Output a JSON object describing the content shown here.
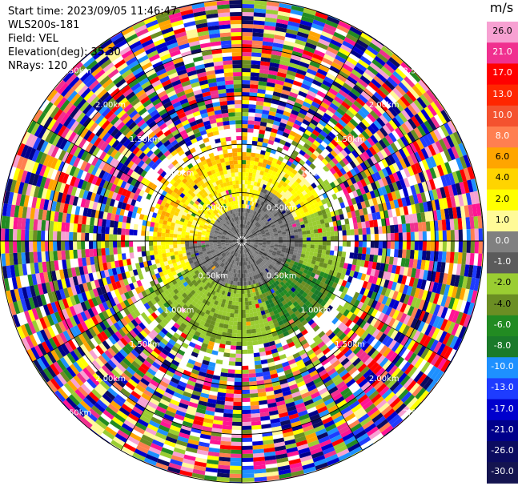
{
  "header": {
    "start_time": "Start time: 2023/09/05 11:46:47",
    "device": "WLS200s-181",
    "field": "Field: VEL",
    "elevation": "Elevation(deg): 35.30",
    "nrays": "NRays: 120"
  },
  "chart_data": {
    "type": "heatmap",
    "projection": "polar-ppi",
    "field": "VEL",
    "n_rays": 120,
    "rings": [
      {
        "range_km": 0.5,
        "label": "0.50km"
      },
      {
        "range_km": 1.0,
        "label": "1.00km"
      },
      {
        "range_km": 1.5,
        "label": "1.50km"
      },
      {
        "range_km": 2.0,
        "label": "2.00km"
      },
      {
        "range_km": 2.5,
        "label": "2.50km"
      }
    ],
    "max_range_km": 2.5,
    "colorbar": {
      "unit": "m/s",
      "ticks": [
        "26.0",
        "21.0",
        "17.0",
        "13.0",
        "10.0",
        "8.0",
        "6.0",
        "4.0",
        "2.0",
        "1.0",
        "0.0",
        "-1.0",
        "-2.0",
        "-4.0",
        "-6.0",
        "-8.0",
        "-10.0",
        "-13.0",
        "-17.0",
        "-21.0",
        "-26.0",
        "-30.0"
      ],
      "colors": [
        "#f7a1d2",
        "#f0308f",
        "#ff0000",
        "#ff2600",
        "#f4522f",
        "#ff7f50",
        "#ffa500",
        "#ffd400",
        "#ffff00",
        "#fffa98",
        "#808080",
        "#5b5b5b",
        "#9acd32",
        "#6b8e23",
        "#228b22",
        "#1a7a2a",
        "#1e90ff",
        "#1e3cff",
        "#0000cd",
        "#00008b",
        "#0b0b60",
        "#141450"
      ]
    }
  }
}
